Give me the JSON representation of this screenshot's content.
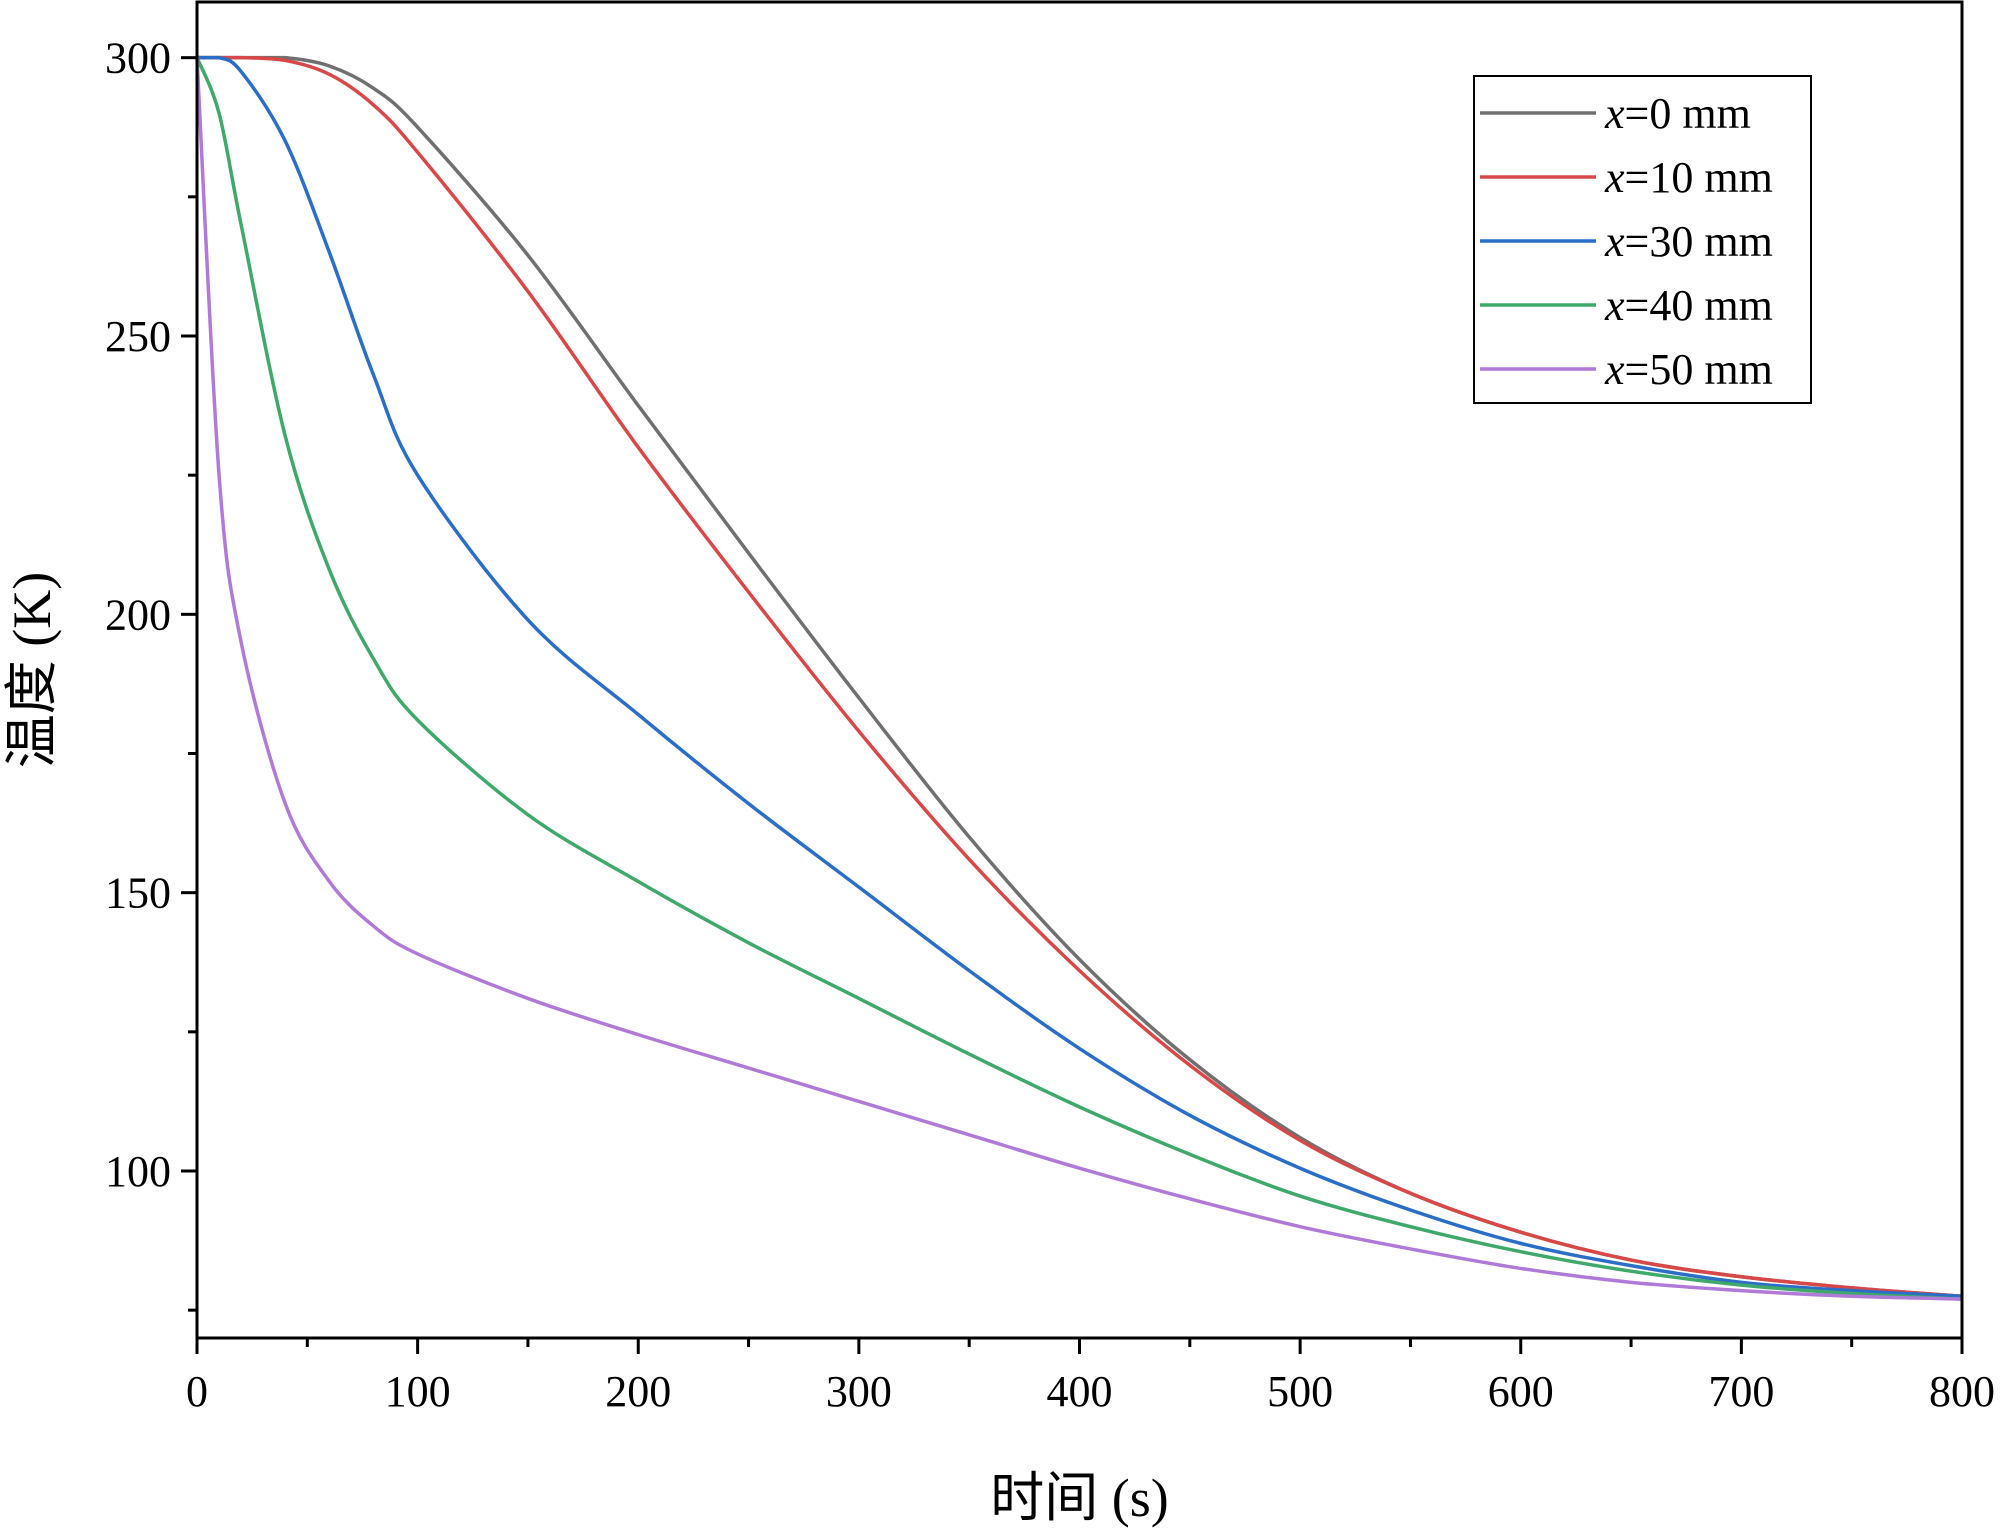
{
  "chart_data": {
    "type": "line",
    "title": "",
    "xlabel": "时间 (s)",
    "ylabel": "温度 (K)",
    "xlim": [
      0,
      800
    ],
    "ylim": [
      70,
      310
    ],
    "xticks": [
      0,
      100,
      200,
      300,
      400,
      500,
      600,
      700,
      800
    ],
    "xtick_labels": [
      "0",
      "100",
      "200",
      "300",
      "400",
      "500",
      "600",
      "700",
      "800"
    ],
    "yticks": [
      100,
      150,
      200,
      250,
      300
    ],
    "ytick_labels": [
      "100",
      "150",
      "200",
      "250",
      "300"
    ],
    "grid": false,
    "legend_position": "top-right",
    "x": [
      0,
      10,
      20,
      40,
      60,
      80,
      100,
      150,
      200,
      250,
      300,
      350,
      400,
      450,
      500,
      550,
      600,
      650,
      700,
      750,
      800
    ],
    "series": [
      {
        "name": "x=0 mm",
        "var": "x",
        "rest": "=0 mm",
        "color": "#707070",
        "values": [
          300,
          300,
          300,
          300,
          298.5,
          294.5,
          287.5,
          264.5,
          237.5,
          211,
          185,
          160,
          138,
          120,
          106,
          96,
          89,
          84,
          81,
          79,
          77.5
        ]
      },
      {
        "name": "x=10 mm",
        "var": "x",
        "rest": "=10 mm",
        "color": "#d94848",
        "values": [
          300,
          300,
          300,
          299.5,
          297,
          291.5,
          283,
          258,
          230,
          204,
          179,
          156,
          136,
          119,
          105.5,
          96,
          89,
          84,
          81,
          79,
          77.5
        ]
      },
      {
        "name": "x=30 mm",
        "var": "x",
        "rest": "=30 mm",
        "color": "#2a6ec8",
        "values": [
          300,
          300,
          297.5,
          285,
          265,
          243,
          225,
          199,
          182,
          166,
          151,
          136,
          122,
          110,
          100.5,
          93,
          87,
          83,
          80,
          78.5,
          77.5
        ]
      },
      {
        "name": "x=40 mm",
        "var": "x",
        "rest": "=40 mm",
        "color": "#3fa86b",
        "values": [
          300,
          290,
          270,
          232,
          208,
          192,
          181,
          164,
          152,
          141,
          131,
          121,
          111.5,
          103,
          95.5,
          90,
          85.5,
          82,
          79.5,
          78,
          77
        ]
      },
      {
        "name": "x=50 mm",
        "var": "x",
        "rest": "=50 mm",
        "color": "#b07ad8",
        "values": [
          300,
          225,
          195,
          166,
          152,
          144,
          139,
          131,
          124.5,
          118.5,
          112.5,
          106.5,
          100.5,
          95,
          90,
          86,
          82.5,
          80,
          78.5,
          77.5,
          77
        ]
      }
    ]
  }
}
